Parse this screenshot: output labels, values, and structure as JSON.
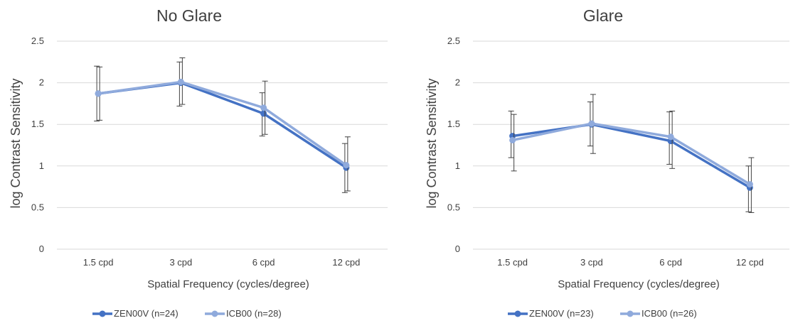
{
  "chart_data": [
    {
      "type": "line",
      "title": "No Glare",
      "xlabel": "Spatial Frequency (cycles/degree)",
      "ylabel": "log Contrast Sensitivity",
      "categories": [
        "1.5 cpd",
        "3 cpd",
        "6 cpd",
        "12 cpd"
      ],
      "ylim": [
        0,
        2.5
      ],
      "yticks": [
        "0",
        "0.5",
        "1",
        "1.5",
        "2",
        "2.5"
      ],
      "grid": true,
      "legend": "bottom",
      "series": [
        {
          "name": "ZEN00V (n=24)",
          "color": "#4472c4",
          "values": [
            1.87,
            2.0,
            1.63,
            0.98
          ],
          "err_low": [
            1.54,
            1.72,
            1.36,
            0.68
          ],
          "err_high": [
            2.2,
            2.25,
            1.88,
            1.27
          ]
        },
        {
          "name": "ICB00 (n=28)",
          "color": "#8faadc",
          "values": [
            1.87,
            2.01,
            1.7,
            1.01
          ],
          "err_low": [
            1.55,
            1.74,
            1.38,
            0.7
          ],
          "err_high": [
            2.19,
            2.3,
            2.02,
            1.35
          ]
        }
      ]
    },
    {
      "type": "line",
      "title": "Glare",
      "xlabel": "Spatial Frequency (cycles/degree)",
      "ylabel": "log Contrast Sensitivity",
      "categories": [
        "1.5 cpd",
        "3 cpd",
        "6 cpd",
        "12 cpd"
      ],
      "ylim": [
        0,
        2.5
      ],
      "yticks": [
        "0",
        "0.5",
        "1",
        "1.5",
        "2",
        "2.5"
      ],
      "grid": true,
      "legend": "bottom",
      "series": [
        {
          "name": "ZEN00V (n=23)",
          "color": "#4472c4",
          "values": [
            1.36,
            1.5,
            1.3,
            0.74
          ],
          "err_low": [
            1.1,
            1.24,
            1.02,
            0.45
          ],
          "err_high": [
            1.66,
            1.77,
            1.65,
            1.0
          ]
        },
        {
          "name": "ICB00 (n=26)",
          "color": "#8faadc",
          "values": [
            1.31,
            1.51,
            1.35,
            0.78
          ],
          "err_low": [
            0.94,
            1.15,
            0.97,
            0.44
          ],
          "err_high": [
            1.62,
            1.86,
            1.66,
            1.1
          ]
        }
      ]
    }
  ]
}
